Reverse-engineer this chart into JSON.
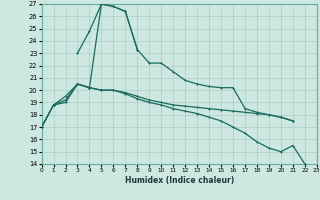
{
  "xlabel": "Humidex (Indice chaleur)",
  "background_color": "#cce8e0",
  "grid_color": "#aacfc8",
  "line_color": "#1a6b60",
  "x_min": 0,
  "x_max": 23,
  "y_min": 14,
  "y_max": 27,
  "lines": [
    {
      "name": "line_flat_top",
      "x": [
        0,
        1,
        2,
        3,
        4,
        5,
        6,
        7,
        8,
        9,
        10,
        11,
        12,
        13,
        14,
        15,
        16,
        17,
        18,
        19,
        20,
        21
      ],
      "y": [
        17.0,
        18.8,
        19.5,
        20.5,
        20.2,
        20.0,
        20.0,
        19.8,
        19.5,
        19.2,
        19.0,
        18.8,
        18.7,
        18.6,
        18.5,
        18.4,
        18.3,
        18.2,
        18.1,
        18.0,
        17.8,
        17.5
      ]
    },
    {
      "name": "line_peak_only",
      "x": [
        3,
        4,
        5,
        6,
        7,
        8
      ],
      "y": [
        23.0,
        24.8,
        27.0,
        26.8,
        26.4,
        23.3
      ]
    },
    {
      "name": "line_big",
      "x": [
        0,
        1,
        2,
        3,
        4,
        5,
        6,
        7,
        8,
        9,
        10,
        11,
        12,
        13,
        14,
        15,
        16,
        17,
        18,
        19,
        20,
        21
      ],
      "y": [
        17.0,
        18.8,
        19.2,
        20.5,
        20.2,
        27.0,
        26.8,
        26.4,
        23.3,
        22.2,
        22.2,
        21.5,
        20.8,
        20.5,
        20.3,
        20.2,
        20.2,
        18.5,
        18.2,
        18.0,
        17.8,
        17.5
      ]
    },
    {
      "name": "line_descending",
      "x": [
        0,
        1,
        2,
        3,
        4,
        5,
        6,
        7,
        8,
        9,
        10,
        11,
        12,
        13,
        14,
        15,
        16,
        17,
        18,
        19,
        20,
        21,
        22
      ],
      "y": [
        17.0,
        18.8,
        19.0,
        20.5,
        20.2,
        20.0,
        20.0,
        19.7,
        19.3,
        19.0,
        18.8,
        18.5,
        18.3,
        18.1,
        17.8,
        17.5,
        17.0,
        16.5,
        15.8,
        15.3,
        15.0,
        15.5,
        14.0
      ]
    }
  ]
}
